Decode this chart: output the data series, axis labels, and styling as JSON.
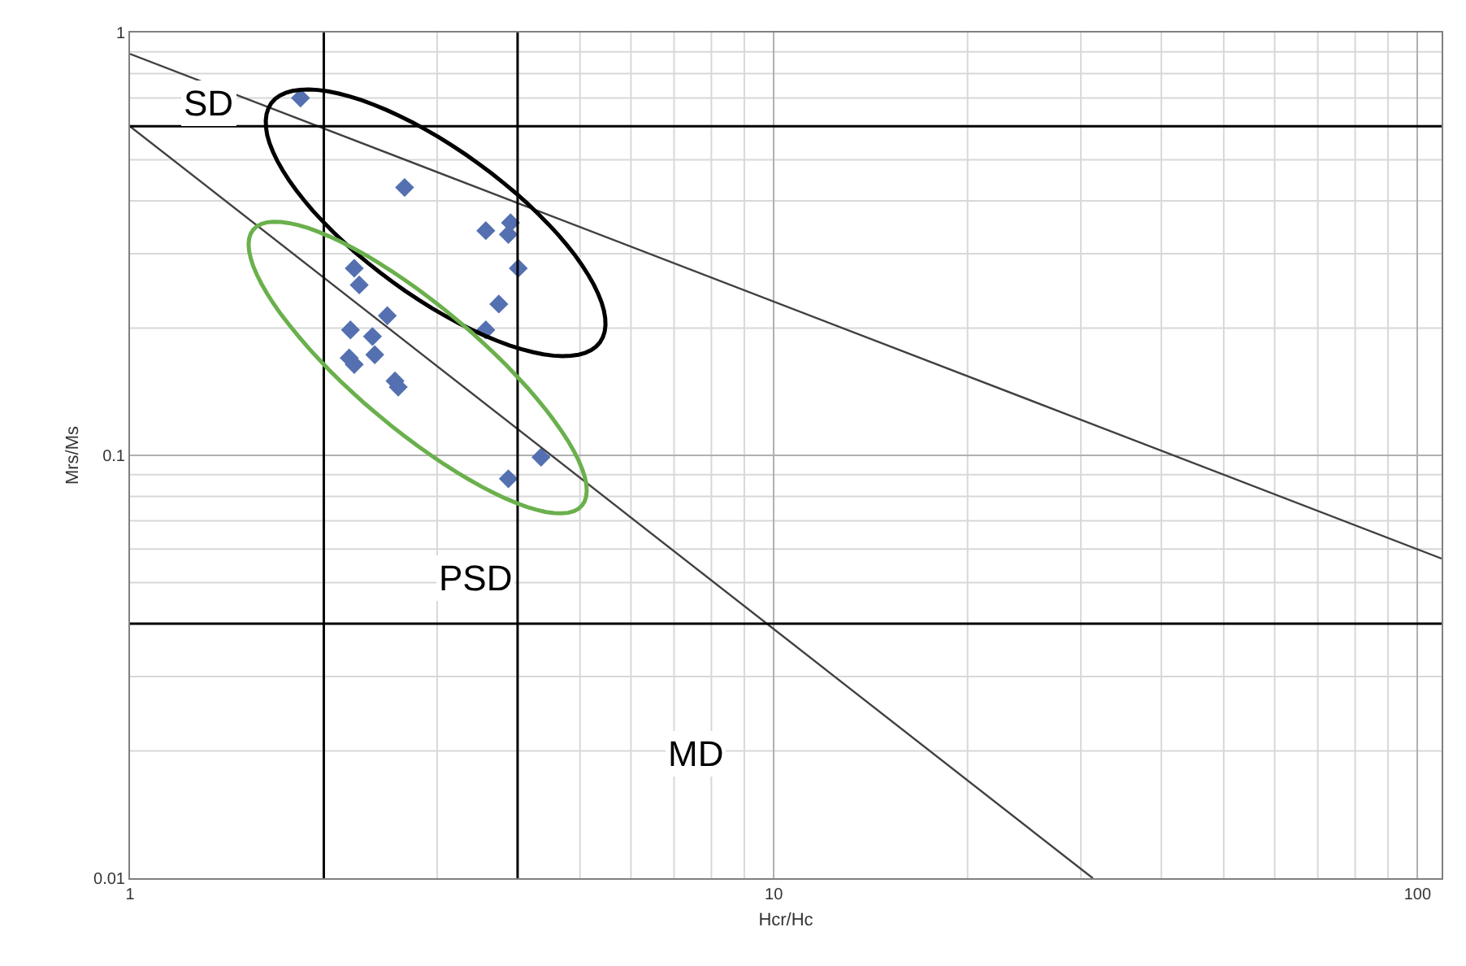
{
  "chart_data": {
    "type": "scatter",
    "xlabel": "Hcr/Hc",
    "ylabel": "Mrs/Ms",
    "log": "xy",
    "grid": true,
    "xlim": [
      1,
      109
    ],
    "ylim": [
      0.01,
      1
    ],
    "xticks": [
      1,
      10,
      100
    ],
    "yticks": [
      0.01,
      0.1,
      1
    ],
    "series": [
      {
        "marker": "diamond",
        "color": "#5470b0",
        "x": [
          1.84,
          2.67,
          3.57,
          3.9,
          3.87,
          4.01,
          3.74,
          3.57,
          2.23,
          2.27,
          2.51,
          2.2,
          2.38,
          2.4,
          2.19,
          2.23,
          2.58,
          2.61,
          4.35,
          3.87
        ],
        "values": [
          0.7,
          0.43,
          0.34,
          0.355,
          0.333,
          0.277,
          0.228,
          0.198,
          0.277,
          0.253,
          0.214,
          0.198,
          0.191,
          0.173,
          0.17,
          0.164,
          0.15,
          0.145,
          0.099,
          0.088
        ]
      },
      {
        "type": "line",
        "color": "#404040",
        "x": [
          1,
          109
        ],
        "values": [
          0.89,
          0.057
        ]
      },
      {
        "type": "line",
        "color": "#404040",
        "x": [
          1,
          31.3
        ],
        "values": [
          0.6,
          0.01
        ]
      }
    ],
    "ref_lines": [
      {
        "axis": "x",
        "value": 2,
        "color": "#000000"
      },
      {
        "axis": "x",
        "value": 4,
        "color": "#000000"
      },
      {
        "axis": "y",
        "value": 0.6,
        "color": "#000000"
      },
      {
        "axis": "y",
        "value": 0.04,
        "color": "#000000"
      }
    ],
    "annotations": [
      "SD",
      "PSD",
      "MD"
    ]
  }
}
